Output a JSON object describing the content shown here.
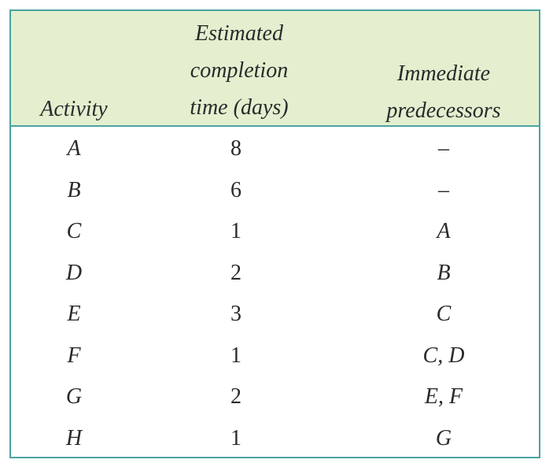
{
  "table": {
    "headers": {
      "activity": "Activity",
      "time": [
        "Estimated",
        "completion",
        "time (days)"
      ],
      "predecessors": [
        "Immediate",
        "predecessors"
      ]
    },
    "rows": [
      {
        "activity": "A",
        "time": "8",
        "predecessors": "–"
      },
      {
        "activity": "B",
        "time": "6",
        "predecessors": "–"
      },
      {
        "activity": "C",
        "time": "1",
        "predecessors": "A"
      },
      {
        "activity": "D",
        "time": "2",
        "predecessors": "B"
      },
      {
        "activity": "E",
        "time": "3",
        "predecessors": "C"
      },
      {
        "activity": "F",
        "time": "1",
        "predecessors": "C,  D"
      },
      {
        "activity": "G",
        "time": "2",
        "predecessors": "E,  F"
      },
      {
        "activity": "H",
        "time": "1",
        "predecessors": "G"
      }
    ]
  },
  "colors": {
    "border": "#4aa4a0",
    "header_bg": "#e3efcf"
  }
}
